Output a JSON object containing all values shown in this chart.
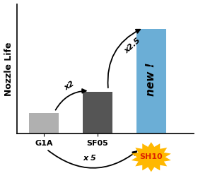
{
  "categories": [
    "G1A",
    "SF05",
    "SH10"
  ],
  "values": [
    1.0,
    2.0,
    5.0
  ],
  "bar_colors": [
    "#b0b0b0",
    "#555555",
    "#6baed6"
  ],
  "bar_width": 0.55,
  "ylabel": "Nozzle Life",
  "xlim": [
    -0.5,
    2.8
  ],
  "ylim": [
    0,
    6.2
  ],
  "arrow1_text": "x2",
  "arrow2_text": "x2.5",
  "arrow3_text": "x 5",
  "new_text": "new !",
  "sh10_label": "SH10",
  "starburst_color": "#FFB800",
  "starburst_text_color": "#DD2200",
  "background_color": "#ffffff"
}
